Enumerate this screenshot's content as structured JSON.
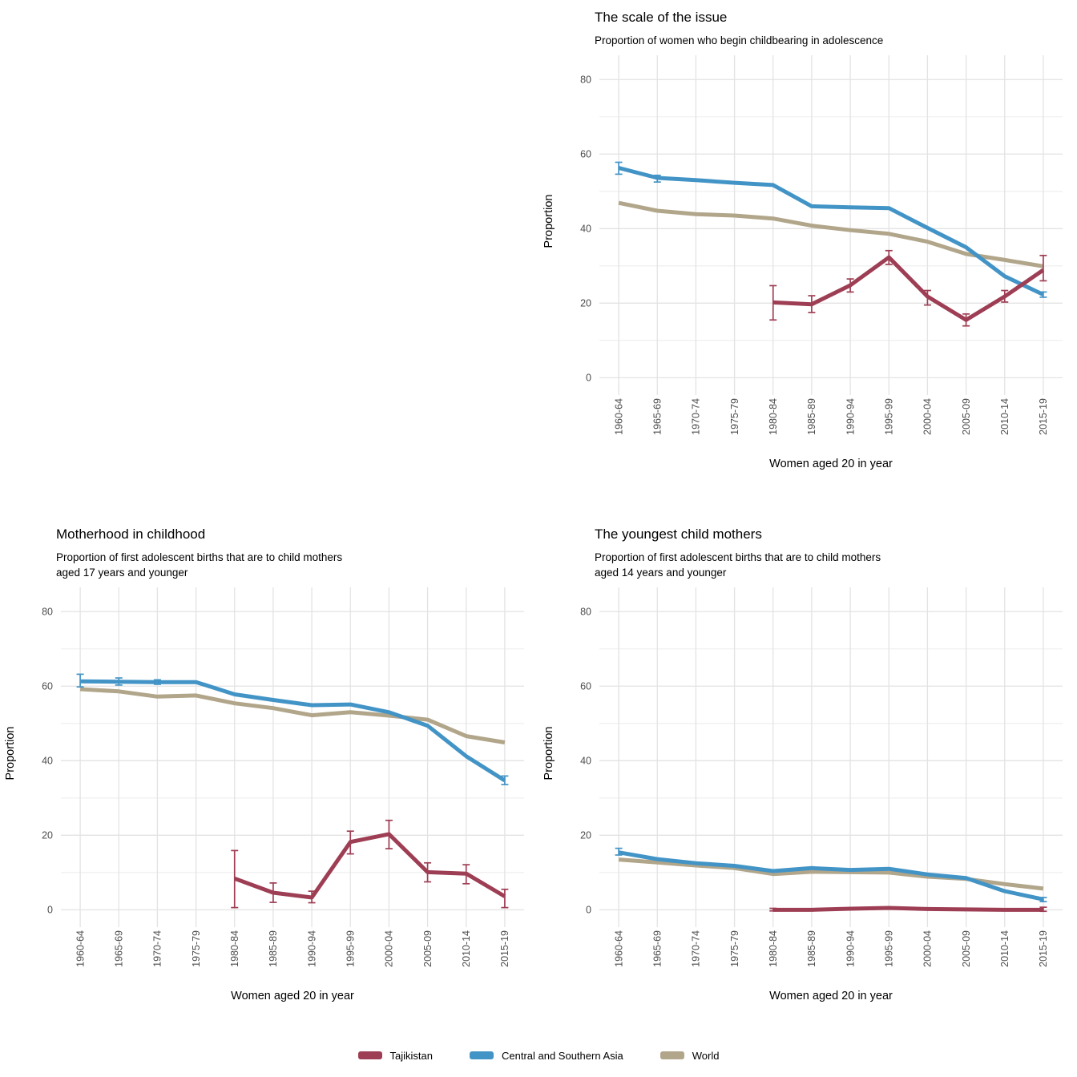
{
  "legend": {
    "items": [
      {
        "label": "Tajikistan",
        "color": "#9e3e54"
      },
      {
        "label": "Central and Southern Asia",
        "color": "#4394c6"
      },
      {
        "label": "World",
        "color": "#b1a58a"
      }
    ]
  },
  "axes": {
    "x_title": "Women aged 20 in year",
    "y_title": "Proportion",
    "y_ticks": [
      0,
      20,
      40,
      60,
      80
    ],
    "y_minor_ticks": [
      10,
      30,
      50,
      70
    ],
    "y_domain": [
      -2.5,
      86.5
    ]
  },
  "chart_data": [
    {
      "type": "line",
      "title": "The scale of the issue",
      "subtitle": "Proportion of women who begin childbearing in adolescence",
      "xlabel": "Women aged 20 in year",
      "ylabel": "Proportion",
      "ylim": [
        0,
        80
      ],
      "grid": true,
      "legend_position": "shared-bottom",
      "categories": [
        "1960-64",
        "1965-69",
        "1970-74",
        "1975-79",
        "1980-84",
        "1985-89",
        "1990-94",
        "1995-99",
        "2000-04",
        "2005-09",
        "2010-14",
        "2015-19"
      ],
      "series": [
        {
          "name": "World",
          "color": "#b1a58a",
          "values": [
            46.9,
            44.8,
            43.9,
            43.5,
            42.7,
            40.8,
            39.6,
            38.6,
            36.5,
            33.2,
            31.6,
            29.9
          ],
          "err_low": [
            null,
            null,
            null,
            null,
            null,
            null,
            null,
            null,
            null,
            null,
            null,
            null
          ],
          "err_high": [
            null,
            null,
            null,
            null,
            null,
            null,
            null,
            null,
            null,
            null,
            null,
            null
          ]
        },
        {
          "name": "Central and Southern Asia",
          "color": "#4394c6",
          "values": [
            56.3,
            53.6,
            53.0,
            52.3,
            51.7,
            46.0,
            45.7,
            45.5,
            40.2,
            35.0,
            27.2,
            22.3
          ],
          "err_low": [
            54.6,
            52.5,
            null,
            null,
            null,
            null,
            null,
            null,
            null,
            null,
            null,
            21.6
          ],
          "err_high": [
            57.8,
            54.3,
            null,
            null,
            null,
            null,
            null,
            null,
            null,
            null,
            null,
            23.0
          ]
        },
        {
          "name": "Tajikistan",
          "color": "#9e3e54",
          "values": [
            null,
            null,
            null,
            null,
            20.2,
            19.7,
            24.8,
            32.3,
            21.8,
            15.5,
            21.8,
            28.9
          ],
          "err_low": [
            null,
            null,
            null,
            null,
            15.5,
            17.5,
            23.0,
            30.4,
            19.5,
            13.9,
            20.3,
            26.0
          ],
          "err_high": [
            null,
            null,
            null,
            null,
            24.7,
            22.0,
            26.5,
            34.1,
            23.4,
            17.1,
            23.4,
            32.8
          ]
        }
      ]
    },
    {
      "type": "line",
      "title": "Motherhood in childhood",
      "subtitle": "Proportion of first adolescent births that are to child mothers\naged 17 years and younger",
      "xlabel": "Women aged 20 in year",
      "ylabel": "Proportion",
      "ylim": [
        0,
        80
      ],
      "grid": true,
      "legend_position": "shared-bottom",
      "categories": [
        "1960-64",
        "1965-69",
        "1970-74",
        "1975-79",
        "1980-84",
        "1985-89",
        "1990-94",
        "1995-99",
        "2000-04",
        "2005-09",
        "2010-14",
        "2015-19"
      ],
      "series": [
        {
          "name": "World",
          "color": "#b1a58a",
          "values": [
            59.2,
            58.6,
            57.2,
            57.5,
            55.4,
            54.1,
            52.2,
            53.0,
            52.1,
            51.0,
            46.6,
            44.9
          ],
          "err_low": [
            null,
            null,
            null,
            null,
            null,
            null,
            null,
            null,
            null,
            null,
            null,
            null
          ],
          "err_high": [
            null,
            null,
            null,
            null,
            null,
            null,
            null,
            null,
            null,
            null,
            null,
            null
          ]
        },
        {
          "name": "Central and Southern Asia",
          "color": "#4394c6",
          "values": [
            61.3,
            61.2,
            61.1,
            61.1,
            57.8,
            56.3,
            54.9,
            55.1,
            53.0,
            49.4,
            41.2,
            34.7
          ],
          "err_low": [
            59.8,
            60.3,
            60.5,
            null,
            null,
            null,
            null,
            null,
            null,
            null,
            null,
            33.6
          ],
          "err_high": [
            63.2,
            62.2,
            61.7,
            null,
            null,
            null,
            null,
            null,
            null,
            null,
            null,
            35.9
          ]
        },
        {
          "name": "Tajikistan",
          "color": "#9e3e54",
          "values": [
            null,
            null,
            null,
            null,
            8.4,
            4.6,
            3.3,
            18.2,
            20.3,
            10.1,
            9.7,
            3.6
          ],
          "err_low": [
            null,
            null,
            null,
            null,
            0.6,
            2.0,
            1.9,
            15.0,
            16.4,
            7.5,
            7.0,
            0.6
          ],
          "err_high": [
            null,
            null,
            null,
            null,
            15.9,
            7.2,
            5.0,
            21.1,
            24.0,
            12.6,
            12.1,
            5.5
          ]
        }
      ]
    },
    {
      "type": "line",
      "title": "The youngest child mothers",
      "subtitle": "Proportion of first adolescent births that are to child mothers\naged 14 years and younger",
      "xlabel": "Women aged 20 in year",
      "ylabel": "Proportion",
      "ylim": [
        0,
        80
      ],
      "grid": true,
      "legend_position": "shared-bottom",
      "categories": [
        "1960-64",
        "1965-69",
        "1970-74",
        "1975-79",
        "1980-84",
        "1985-89",
        "1990-94",
        "1995-99",
        "2000-04",
        "2005-09",
        "2010-14",
        "2015-19"
      ],
      "series": [
        {
          "name": "World",
          "color": "#b1a58a",
          "values": [
            13.5,
            12.7,
            11.9,
            11.2,
            9.6,
            10.2,
            10.1,
            10.0,
            8.9,
            8.3,
            6.9,
            5.7
          ],
          "err_low": [
            null,
            null,
            null,
            null,
            null,
            null,
            null,
            null,
            null,
            null,
            null,
            null
          ],
          "err_high": [
            null,
            null,
            null,
            null,
            null,
            null,
            null,
            null,
            null,
            null,
            null,
            null
          ]
        },
        {
          "name": "Central and Southern Asia",
          "color": "#4394c6",
          "values": [
            15.4,
            13.6,
            12.5,
            11.8,
            10.4,
            11.2,
            10.7,
            11.0,
            9.5,
            8.5,
            5.0,
            2.8
          ],
          "err_low": [
            14.7,
            null,
            null,
            null,
            null,
            null,
            null,
            null,
            null,
            null,
            null,
            2.2
          ],
          "err_high": [
            16.5,
            null,
            null,
            null,
            null,
            null,
            null,
            null,
            null,
            null,
            null,
            3.3
          ]
        },
        {
          "name": "Tajikistan",
          "color": "#9e3e54",
          "values": [
            null,
            null,
            null,
            null,
            0.0,
            0.0,
            0.3,
            0.5,
            0.2,
            0.1,
            0.0,
            0.0
          ],
          "err_low": [
            null,
            null,
            null,
            null,
            -0.3,
            null,
            null,
            null,
            null,
            null,
            null,
            -0.4
          ],
          "err_high": [
            null,
            null,
            null,
            null,
            0.4,
            null,
            null,
            null,
            null,
            null,
            null,
            0.7
          ]
        }
      ]
    }
  ]
}
